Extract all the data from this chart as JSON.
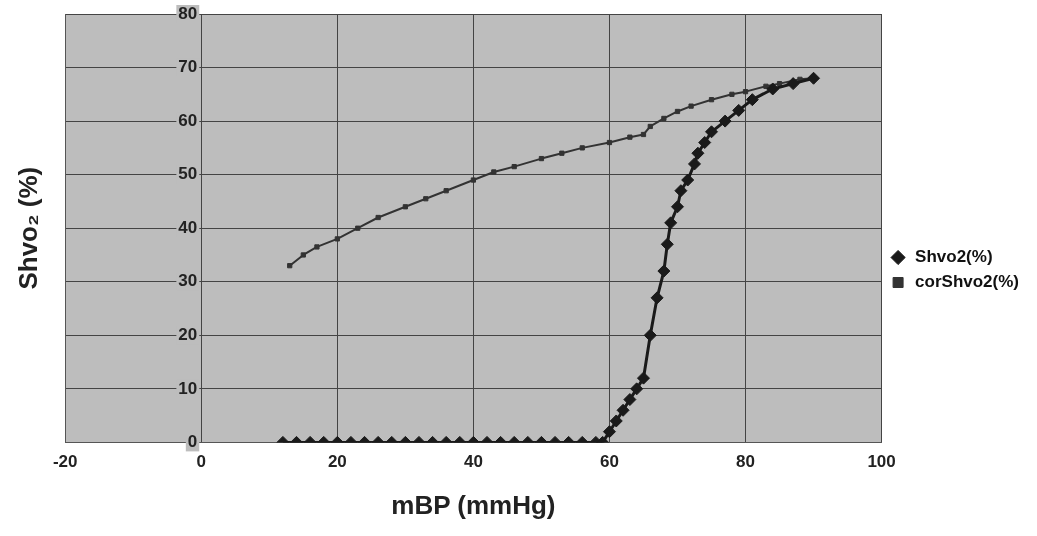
{
  "chart_data": {
    "type": "line",
    "xlabel": "mBP (mmHg)",
    "ylabel": "Shvo₂ (%)",
    "xlim": [
      -20,
      100
    ],
    "xticks": [
      -20,
      0,
      20,
      40,
      60,
      80,
      100
    ],
    "ylim": [
      0,
      80
    ],
    "yticks": [
      0,
      10,
      20,
      30,
      40,
      50,
      60,
      70,
      80
    ],
    "grid": true,
    "legend": "right",
    "line_style": "solid",
    "series": [
      {
        "name": "Shvo2(%)",
        "color": "#1a1a1a",
        "marker": "diamond",
        "x": [
          12,
          14,
          16,
          18,
          20,
          22,
          24,
          26,
          28,
          30,
          32,
          34,
          36,
          38,
          40,
          42,
          44,
          46,
          48,
          50,
          52,
          54,
          56,
          58,
          59,
          60,
          61,
          62,
          63,
          64,
          65,
          66,
          67,
          68,
          68.5,
          69,
          70,
          70.5,
          71.5,
          72.5,
          73,
          74,
          75,
          77,
          79,
          81,
          84,
          87,
          90
        ],
        "values": [
          0,
          0,
          0,
          0,
          0,
          0,
          0,
          0,
          0,
          0,
          0,
          0,
          0,
          0,
          0,
          0,
          0,
          0,
          0,
          0,
          0,
          0,
          0,
          0,
          0,
          2,
          4,
          6,
          8,
          10,
          12,
          20,
          27,
          32,
          37,
          41,
          44,
          47,
          49,
          52,
          54,
          56,
          58,
          60,
          62,
          64,
          66,
          67,
          68
        ]
      },
      {
        "name": "corShvo2(%)",
        "color": "#333333",
        "marker": "square",
        "x": [
          13,
          15,
          17,
          20,
          23,
          26,
          30,
          33,
          36,
          40,
          43,
          46,
          50,
          53,
          56,
          60,
          63,
          65,
          66,
          68,
          70,
          72,
          75,
          78,
          80,
          83,
          85,
          88,
          90
        ],
        "values": [
          33,
          35,
          36.5,
          38,
          40,
          42,
          44,
          45.5,
          47,
          49,
          50.5,
          51.5,
          53,
          54,
          55,
          56,
          57,
          57.5,
          59,
          60.5,
          61.8,
          62.8,
          64,
          65,
          65.5,
          66.5,
          67,
          67.8,
          68
        ]
      }
    ]
  }
}
